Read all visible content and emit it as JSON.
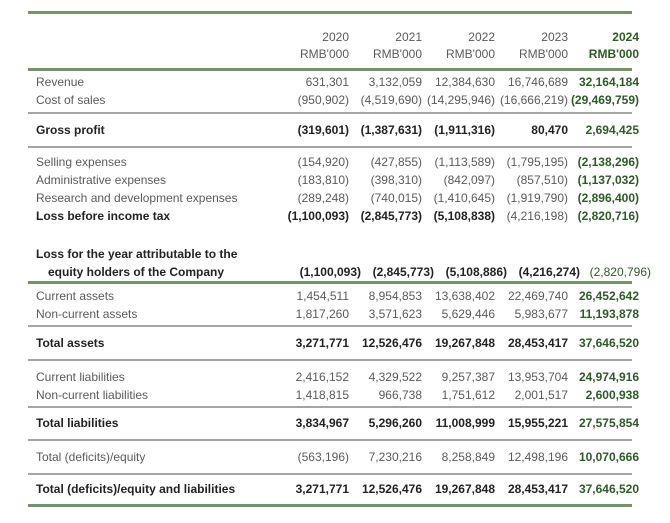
{
  "header": {
    "years": [
      "2020",
      "2021",
      "2022",
      "2023",
      "2024"
    ],
    "units": [
      "RMB'000",
      "RMB'000",
      "RMB'000",
      "RMB'000",
      "RMB'000"
    ]
  },
  "rows": [
    {
      "label": "Revenue",
      "values": [
        "631,301",
        "3,132,059",
        "12,384,630",
        "16,746,689",
        "32,164,184"
      ]
    },
    {
      "label": "Cost of sales",
      "values": [
        "(950,902)",
        "(4,519,690)",
        "(14,295,946)",
        "(16,666,219)",
        "(29,469,759)"
      ]
    },
    {
      "label": "Gross profit",
      "values": [
        "(319,601)",
        "(1,387,631)",
        "(1,911,316)",
        "80,470",
        "2,694,425"
      ]
    },
    {
      "label": "Selling expenses",
      "values": [
        "(154,920)",
        "(427,855)",
        "(1,113,589)",
        "(1,795,195)",
        "(2,138,296)"
      ]
    },
    {
      "label": "Administrative expenses",
      "values": [
        "(183,810)",
        "(398,310)",
        "(842,097)",
        "(857,510)",
        "(1,137,032)"
      ]
    },
    {
      "label": "Research and development expenses",
      "values": [
        "(289,248)",
        "(740,015)",
        "(1,410,645)",
        "(1,919,790)",
        "(2,896,400)"
      ]
    },
    {
      "label": "Loss before income tax",
      "values": [
        "(1,100,093)",
        "(2,845,773)",
        "(5,108,838)",
        "(4,216,198)",
        "(2,820,716)"
      ]
    },
    {
      "label": "Loss for the year attributable to the",
      "label2": "equity holders of the Company",
      "values": [
        "(1,100,093)",
        "(2,845,773)",
        "(5,108,886)",
        "(4,216,274)",
        "(2,820,796)"
      ]
    },
    {
      "label": "Current assets",
      "values": [
        "1,454,511",
        "8,954,853",
        "13,638,402",
        "22,469,740",
        "26,452,642"
      ]
    },
    {
      "label": "Non-current assets",
      "values": [
        "1,817,260",
        "3,571,623",
        "5,629,446",
        "5,983,677",
        "11,193,878"
      ]
    },
    {
      "label": "Total assets",
      "values": [
        "3,271,771",
        "12,526,476",
        "19,267,848",
        "28,453,417",
        "37,646,520"
      ]
    },
    {
      "label": "Current liabilities",
      "values": [
        "2,416,152",
        "4,329,522",
        "9,257,387",
        "13,953,704",
        "24,974,916"
      ]
    },
    {
      "label": "Non-current liabilities",
      "values": [
        "1,418,815",
        "966,738",
        "1,751,612",
        "2,001,517",
        "2,600,938"
      ]
    },
    {
      "label": "Total liabilities",
      "values": [
        "3,834,967",
        "5,296,260",
        "11,008,999",
        "15,955,221",
        "27,575,854"
      ]
    },
    {
      "label": "Total (deficits)/equity",
      "values": [
        "(563,196)",
        "7,230,216",
        "8,258,849",
        "12,498,196",
        "10,070,666"
      ]
    },
    {
      "label": "Total (deficits)/equity and liabilities",
      "values": [
        "3,271,771",
        "12,526,476",
        "19,267,848",
        "28,453,417",
        "37,646,520"
      ]
    }
  ],
  "colors": {
    "accent_green": "#2d5a27",
    "rule_green": "#75926a",
    "rule_gray": "#a5a5a5"
  }
}
